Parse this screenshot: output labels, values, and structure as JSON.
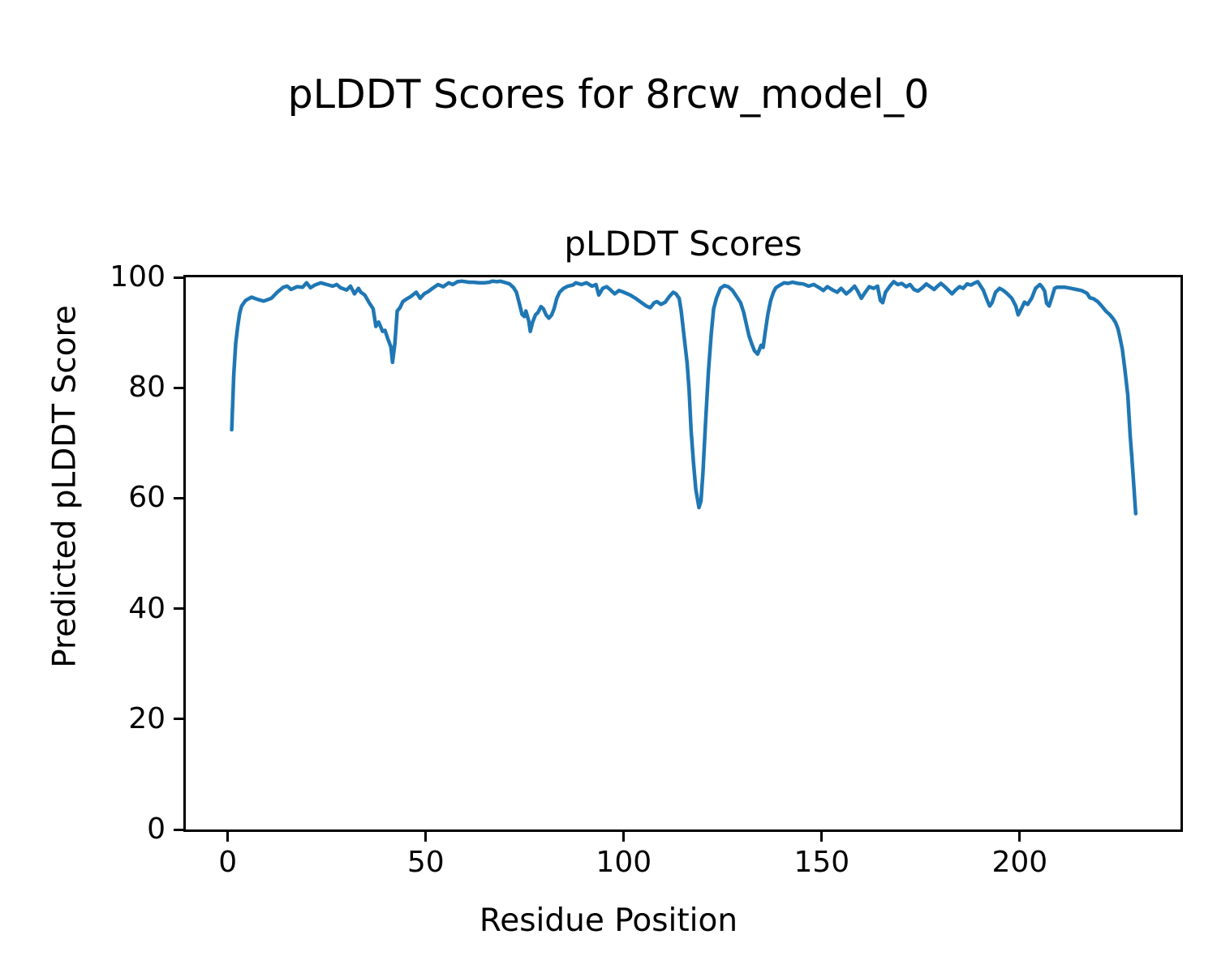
{
  "figure": {
    "suptitle": "pLDDT Scores for 8rcw_model_0",
    "axes_title": "pLDDT Scores",
    "xlabel": "Residue Position",
    "ylabel": "Predicted pLDDT Score"
  },
  "chart_data": {
    "type": "line",
    "suptitle": "pLDDT Scores for 8rcw_model_0",
    "title": "pLDDT Scores",
    "xlabel": "Residue Position",
    "ylabel": "Predicted pLDDT Score",
    "xlim": [
      -10.6,
      240.6
    ],
    "ylim": [
      0,
      100
    ],
    "xticks": [
      0,
      50,
      100,
      150,
      200
    ],
    "yticks": [
      0,
      20,
      40,
      60,
      80,
      100
    ],
    "grid": false,
    "legend": false,
    "line_color": "#1f77b4",
    "line_width": 4.5,
    "series": [
      {
        "name": "pLDDT",
        "points": [
          [
            1,
            72.4
          ],
          [
            1.5,
            82.3
          ],
          [
            2,
            88.0
          ],
          [
            2.5,
            91.0
          ],
          [
            3,
            93.5
          ],
          [
            3.5,
            94.8
          ],
          [
            4.5,
            95.8
          ],
          [
            6,
            96.4
          ],
          [
            7.5,
            96.0
          ],
          [
            9,
            95.7
          ],
          [
            9.5,
            95.8
          ],
          [
            11,
            96.2
          ],
          [
            12.5,
            97.3
          ],
          [
            14,
            98.2
          ],
          [
            15,
            98.4
          ],
          [
            16,
            97.8
          ],
          [
            17.5,
            98.3
          ],
          [
            18.9,
            98.2
          ],
          [
            19.9,
            99.0
          ],
          [
            20.9,
            98.1
          ],
          [
            22,
            98.6
          ],
          [
            23.5,
            99.0
          ],
          [
            25,
            98.7
          ],
          [
            26.5,
            98.4
          ],
          [
            27.5,
            98.7
          ],
          [
            28.5,
            98.1
          ],
          [
            30,
            97.7
          ],
          [
            31,
            98.4
          ],
          [
            32,
            97.0
          ],
          [
            33,
            98.0
          ],
          [
            33.6,
            97.3
          ],
          [
            34.6,
            96.8
          ],
          [
            35.7,
            95.4
          ],
          [
            36.7,
            94.3
          ],
          [
            37.4,
            91.1
          ],
          [
            38.1,
            91.9
          ],
          [
            39.1,
            90.2
          ],
          [
            39.7,
            90.4
          ],
          [
            40.4,
            88.9
          ],
          [
            41.2,
            87.4
          ],
          [
            41.6,
            84.6
          ],
          [
            42.2,
            88.0
          ],
          [
            42.8,
            93.9
          ],
          [
            43.5,
            94.5
          ],
          [
            44.2,
            95.6
          ],
          [
            45,
            96.0
          ],
          [
            46.2,
            96.5
          ],
          [
            47.6,
            97.3
          ],
          [
            48.6,
            96.2
          ],
          [
            49.6,
            97.0
          ],
          [
            50.6,
            97.4
          ],
          [
            51.7,
            98.0
          ],
          [
            53.1,
            98.7
          ],
          [
            54.4,
            98.3
          ],
          [
            55.8,
            99.0
          ],
          [
            56.8,
            98.7
          ],
          [
            58,
            99.2
          ],
          [
            59.2,
            99.3
          ],
          [
            61,
            99.1
          ],
          [
            62,
            99.1
          ],
          [
            63.5,
            99.0
          ],
          [
            64.7,
            99.0
          ],
          [
            66,
            99.1
          ],
          [
            66.8,
            99.3
          ],
          [
            68,
            99.2
          ],
          [
            68.8,
            99.3
          ],
          [
            69.8,
            99.1
          ],
          [
            71.2,
            98.8
          ],
          [
            72.2,
            98.1
          ],
          [
            72.9,
            97.3
          ],
          [
            73.6,
            95.4
          ],
          [
            74.3,
            93.3
          ],
          [
            74.9,
            92.9
          ],
          [
            75.3,
            93.9
          ],
          [
            76,
            92.1
          ],
          [
            76.4,
            90.2
          ],
          [
            77,
            91.9
          ],
          [
            77.7,
            93.2
          ],
          [
            78.3,
            93.6
          ],
          [
            79.1,
            94.7
          ],
          [
            79.7,
            94.3
          ],
          [
            80.4,
            93.2
          ],
          [
            81.1,
            92.6
          ],
          [
            81.8,
            93.2
          ],
          [
            82.4,
            94.3
          ],
          [
            83.1,
            96.2
          ],
          [
            83.8,
            97.3
          ],
          [
            84.8,
            98.0
          ],
          [
            85.9,
            98.4
          ],
          [
            87.2,
            98.6
          ],
          [
            87.9,
            99.0
          ],
          [
            89.3,
            98.7
          ],
          [
            90.6,
            99.0
          ],
          [
            92,
            98.4
          ],
          [
            93,
            98.7
          ],
          [
            93.7,
            96.8
          ],
          [
            94.7,
            98.0
          ],
          [
            95.7,
            98.3
          ],
          [
            96.7,
            97.7
          ],
          [
            97.7,
            97.0
          ],
          [
            98.8,
            97.6
          ],
          [
            100,
            97.3
          ],
          [
            101.6,
            96.8
          ],
          [
            103,
            96.2
          ],
          [
            104.3,
            95.5
          ],
          [
            105.7,
            94.8
          ],
          [
            106.7,
            94.5
          ],
          [
            107.7,
            95.4
          ],
          [
            108.4,
            95.6
          ],
          [
            109.4,
            95.1
          ],
          [
            110.5,
            95.5
          ],
          [
            111.5,
            96.5
          ],
          [
            112.5,
            97.3
          ],
          [
            113.2,
            97.0
          ],
          [
            114,
            96.2
          ],
          [
            114.5,
            93.9
          ],
          [
            115.2,
            89.5
          ],
          [
            116,
            84.5
          ],
          [
            116.5,
            79.7
          ],
          [
            117,
            72.3
          ],
          [
            117.6,
            66.5
          ],
          [
            118.2,
            61.6
          ],
          [
            119,
            58.3
          ],
          [
            119.5,
            59.5
          ],
          [
            120,
            64.6
          ],
          [
            120.7,
            74.2
          ],
          [
            121.4,
            83.0
          ],
          [
            122.1,
            89.9
          ],
          [
            122.7,
            94.3
          ],
          [
            123.4,
            96.2
          ],
          [
            124.4,
            98.0
          ],
          [
            125.4,
            98.5
          ],
          [
            126.4,
            98.3
          ],
          [
            127.5,
            97.6
          ],
          [
            128.5,
            96.5
          ],
          [
            129.5,
            95.4
          ],
          [
            130.3,
            93.6
          ],
          [
            131,
            91.4
          ],
          [
            131.6,
            89.5
          ],
          [
            132.3,
            88.0
          ],
          [
            133,
            86.7
          ],
          [
            133.8,
            86.1
          ],
          [
            134.7,
            87.7
          ],
          [
            135.2,
            87.3
          ],
          [
            135.7,
            89.9
          ],
          [
            136.4,
            93.3
          ],
          [
            137.1,
            95.8
          ],
          [
            137.8,
            97.3
          ],
          [
            138.4,
            98.1
          ],
          [
            139.5,
            98.6
          ],
          [
            140.5,
            99.0
          ],
          [
            141.5,
            98.9
          ],
          [
            142.6,
            99.1
          ],
          [
            144,
            98.9
          ],
          [
            145.3,
            98.8
          ],
          [
            146.7,
            98.4
          ],
          [
            148,
            98.7
          ],
          [
            149.4,
            98.1
          ],
          [
            150.4,
            97.6
          ],
          [
            151.4,
            98.3
          ],
          [
            152.8,
            97.7
          ],
          [
            153.9,
            97.3
          ],
          [
            154.9,
            98.0
          ],
          [
            156.2,
            97.0
          ],
          [
            157.2,
            97.6
          ],
          [
            158.3,
            98.4
          ],
          [
            159,
            97.6
          ],
          [
            160,
            96.2
          ],
          [
            161,
            97.3
          ],
          [
            162,
            98.3
          ],
          [
            163.1,
            98.0
          ],
          [
            164.1,
            98.4
          ],
          [
            164.8,
            95.8
          ],
          [
            165.4,
            95.4
          ],
          [
            166.1,
            97.3
          ],
          [
            167.2,
            98.4
          ],
          [
            168.2,
            99.2
          ],
          [
            169.2,
            98.7
          ],
          [
            170.2,
            98.9
          ],
          [
            171.3,
            98.3
          ],
          [
            172.3,
            98.7
          ],
          [
            173.3,
            97.8
          ],
          [
            174.3,
            97.5
          ],
          [
            175.4,
            98.1
          ],
          [
            176.4,
            98.8
          ],
          [
            177.4,
            98.3
          ],
          [
            178.4,
            97.8
          ],
          [
            179.1,
            98.3
          ],
          [
            180.1,
            98.9
          ],
          [
            181.1,
            98.3
          ],
          [
            182.2,
            97.5
          ],
          [
            182.9,
            97.0
          ],
          [
            183.8,
            97.7
          ],
          [
            184.8,
            98.3
          ],
          [
            185.7,
            98.0
          ],
          [
            186.7,
            98.8
          ],
          [
            187.7,
            98.6
          ],
          [
            188.7,
            99.0
          ],
          [
            189.4,
            99.2
          ],
          [
            190.8,
            97.7
          ],
          [
            191.8,
            95.8
          ],
          [
            192.4,
            94.8
          ],
          [
            193,
            95.4
          ],
          [
            193.9,
            97.3
          ],
          [
            194.9,
            98.0
          ],
          [
            195.9,
            97.6
          ],
          [
            196.9,
            97.0
          ],
          [
            198,
            96.2
          ],
          [
            199,
            94.8
          ],
          [
            199.6,
            93.2
          ],
          [
            200.6,
            94.6
          ],
          [
            201.2,
            95.5
          ],
          [
            202,
            95.1
          ],
          [
            203,
            96.2
          ],
          [
            204,
            98.0
          ],
          [
            205.1,
            98.7
          ],
          [
            205.7,
            98.2
          ],
          [
            206.3,
            97.5
          ],
          [
            206.8,
            95.3
          ],
          [
            207.4,
            94.8
          ],
          [
            208.1,
            96.3
          ],
          [
            208.8,
            98.0
          ],
          [
            209.4,
            98.2
          ],
          [
            211.5,
            98.2
          ],
          [
            212.9,
            98.0
          ],
          [
            214.3,
            97.8
          ],
          [
            215.6,
            97.6
          ],
          [
            217,
            97.1
          ],
          [
            217.7,
            96.3
          ],
          [
            218.7,
            96.1
          ],
          [
            219.7,
            95.6
          ],
          [
            220.7,
            94.8
          ],
          [
            221.7,
            93.9
          ],
          [
            222.8,
            93.2
          ],
          [
            223.5,
            92.6
          ],
          [
            224.2,
            91.8
          ],
          [
            224.8,
            90.7
          ],
          [
            225.2,
            89.5
          ],
          [
            225.9,
            87.0
          ],
          [
            226.6,
            83.0
          ],
          [
            227.3,
            78.6
          ],
          [
            227.6,
            74.8
          ],
          [
            227.9,
            71.3
          ],
          [
            228.3,
            67.5
          ],
          [
            228.7,
            63.5
          ],
          [
            229,
            60.2
          ],
          [
            229.3,
            57.2
          ]
        ]
      }
    ]
  }
}
